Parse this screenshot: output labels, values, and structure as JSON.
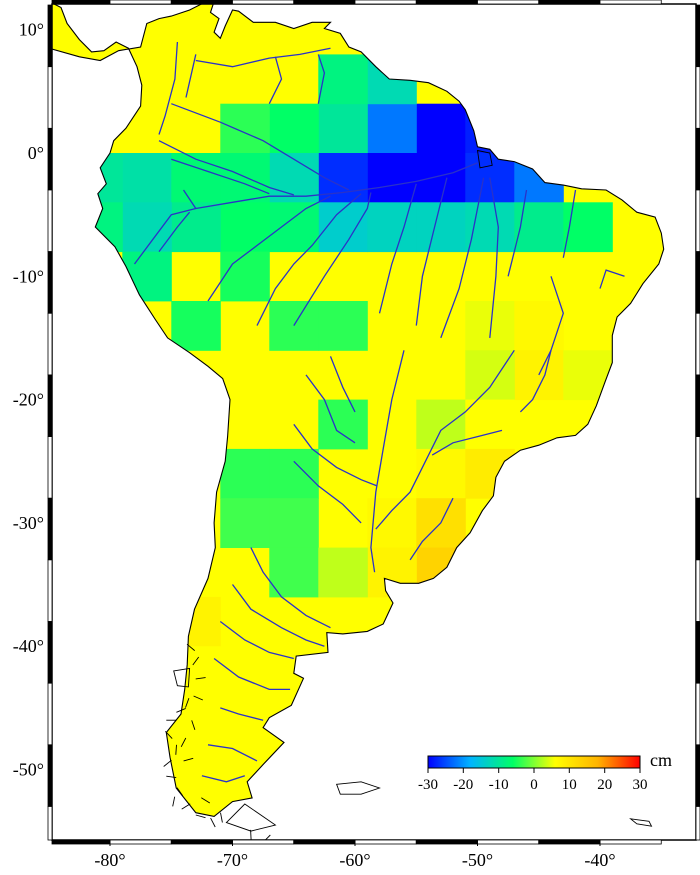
{
  "map": {
    "region": "South America",
    "projection": "equirectangular",
    "lon_range": [
      -85,
      -35
    ],
    "lat_range": [
      -56,
      12
    ],
    "ocean_color": "#ffffff",
    "land_base_color": "#ffff00",
    "coastline_color": "#000000",
    "river_color": "#2a32c8",
    "grid_cell_deg": 4
  },
  "axes": {
    "lat_ticks": [
      {
        "value": 10,
        "label": "10°"
      },
      {
        "value": 0,
        "label": "0°"
      },
      {
        "value": -10,
        "label": "-10°"
      },
      {
        "value": -20,
        "label": "-20°"
      },
      {
        "value": -30,
        "label": "-30°"
      },
      {
        "value": -40,
        "label": "-40°"
      },
      {
        "value": -50,
        "label": "-50°"
      }
    ],
    "lon_ticks": [
      {
        "value": -80,
        "label": "-80°"
      },
      {
        "value": -70,
        "label": "-70°"
      },
      {
        "value": -60,
        "label": "-60°"
      },
      {
        "value": -50,
        "label": "-50°"
      },
      {
        "value": -40,
        "label": "-40°"
      }
    ]
  },
  "colorbar": {
    "unit": "cm",
    "min": -30,
    "max": 30,
    "ticks": [
      {
        "value": -30,
        "label": "-30"
      },
      {
        "value": -20,
        "label": "-20"
      },
      {
        "value": -10,
        "label": "-10"
      },
      {
        "value": 0,
        "label": "0"
      },
      {
        "value": 10,
        "label": "10"
      },
      {
        "value": 20,
        "label": "20"
      },
      {
        "value": 30,
        "label": "30"
      }
    ],
    "colors": [
      "#0000ff",
      "#00b4ff",
      "#00ff66",
      "#ffff00",
      "#ffb400",
      "#ff0000"
    ]
  },
  "anomaly_cells": [
    {
      "lon": -73,
      "lat": 10,
      "value": 6
    },
    {
      "lon": -53,
      "lat": 2,
      "value": -30
    },
    {
      "lon": -49,
      "lat": 2,
      "value": -28
    },
    {
      "lon": -57,
      "lat": 2,
      "value": -22
    },
    {
      "lon": -61,
      "lat": 2,
      "value": -10
    },
    {
      "lon": -57,
      "lat": 6,
      "value": -12
    },
    {
      "lon": -61,
      "lat": 6,
      "value": -8
    },
    {
      "lon": -65,
      "lat": 2,
      "value": -6
    },
    {
      "lon": -69,
      "lat": 2,
      "value": -4
    },
    {
      "lon": -57,
      "lat": -2,
      "value": -30
    },
    {
      "lon": -53,
      "lat": -2,
      "value": -30
    },
    {
      "lon": -49,
      "lat": -2,
      "value": -27
    },
    {
      "lon": -61,
      "lat": -2,
      "value": -27
    },
    {
      "lon": -45,
      "lat": -2,
      "value": -22
    },
    {
      "lon": -65,
      "lat": -2,
      "value": -12
    },
    {
      "lon": -69,
      "lat": -2,
      "value": -7
    },
    {
      "lon": -77,
      "lat": -2,
      "value": -11
    },
    {
      "lon": -81,
      "lat": -2,
      "value": -10
    },
    {
      "lon": -73,
      "lat": -2,
      "value": -7
    },
    {
      "lon": -61,
      "lat": -6,
      "value": -14
    },
    {
      "lon": -57,
      "lat": -6,
      "value": -13
    },
    {
      "lon": -53,
      "lat": -6,
      "value": -13
    },
    {
      "lon": -49,
      "lat": -6,
      "value": -12
    },
    {
      "lon": -45,
      "lat": -6,
      "value": -9
    },
    {
      "lon": -41,
      "lat": -6,
      "value": -6
    },
    {
      "lon": -65,
      "lat": -6,
      "value": -7
    },
    {
      "lon": -69,
      "lat": -6,
      "value": -6
    },
    {
      "lon": -73,
      "lat": -6,
      "value": -9
    },
    {
      "lon": -77,
      "lat": -6,
      "value": -12
    },
    {
      "lon": -81,
      "lat": -6,
      "value": -8
    },
    {
      "lon": -77,
      "lat": -10,
      "value": -8
    },
    {
      "lon": -69,
      "lat": -10,
      "value": -5
    },
    {
      "lon": -73,
      "lat": -14,
      "value": -5
    },
    {
      "lon": -65,
      "lat": -14,
      "value": -4
    },
    {
      "lon": -61,
      "lat": -14,
      "value": -4
    },
    {
      "lon": -49,
      "lat": -14,
      "value": 5
    },
    {
      "lon": -45,
      "lat": -14,
      "value": 7
    },
    {
      "lon": -45,
      "lat": -18,
      "value": 8
    },
    {
      "lon": -49,
      "lat": -18,
      "value": 4
    },
    {
      "lon": -41,
      "lat": -18,
      "value": 5
    },
    {
      "lon": -53,
      "lat": -22,
      "value": 3
    },
    {
      "lon": -49,
      "lat": -22,
      "value": 6
    },
    {
      "lon": -61,
      "lat": -22,
      "value": -4
    },
    {
      "lon": -53,
      "lat": -26,
      "value": 7
    },
    {
      "lon": -49,
      "lat": -26,
      "value": 9
    },
    {
      "lon": -65,
      "lat": -26,
      "value": -4
    },
    {
      "lon": -69,
      "lat": -26,
      "value": -4
    },
    {
      "lon": -65,
      "lat": -30,
      "value": -3
    },
    {
      "lon": -57,
      "lat": -30,
      "value": 7
    },
    {
      "lon": -53,
      "lat": -30,
      "value": 11
    },
    {
      "lon": -69,
      "lat": -30,
      "value": -3
    },
    {
      "lon": -53,
      "lat": -34,
      "value": 13
    },
    {
      "lon": -57,
      "lat": -34,
      "value": 8
    },
    {
      "lon": -65,
      "lat": -34,
      "value": -3
    },
    {
      "lon": -61,
      "lat": -34,
      "value": 3
    },
    {
      "lon": -73,
      "lat": -38,
      "value": 8
    },
    {
      "lon": -73,
      "lat": -42,
      "value": 6
    }
  ]
}
